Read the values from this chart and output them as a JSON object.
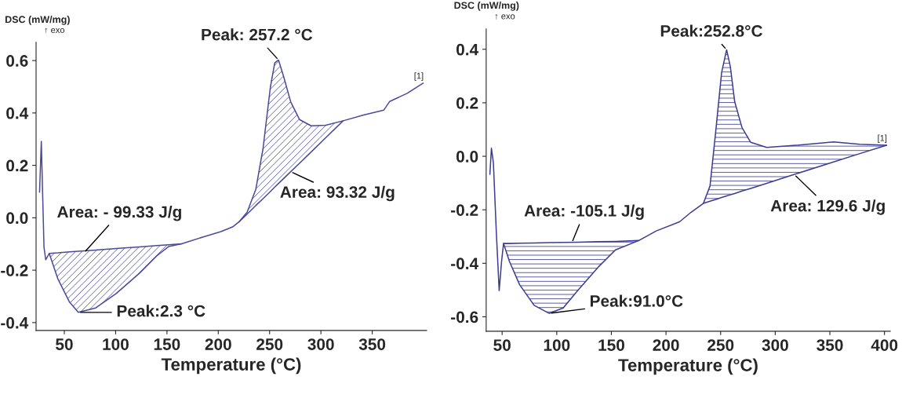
{
  "chart_data": [
    {
      "type": "line",
      "ylabel": "DSC (mW/mg)",
      "xlabel": "Temperature (°C)",
      "xlim": [
        22.5,
        403
      ],
      "ylim": [
        -0.43,
        0.67
      ],
      "xticks": [
        50,
        100,
        150,
        200,
        250,
        300,
        350
      ],
      "yticks": [
        -0.4,
        -0.2,
        {
          "value": 0,
          "label": "0.0"
        },
        0.2,
        0.4,
        0.6
      ],
      "grid": false,
      "legend": false,
      "series": [
        {
          "color": "#4a4a9c",
          "x": [
            25.9,
            27.6,
            30.2,
            31.9,
            35.3,
            43.8,
            55.1,
            63.6,
            80.6,
            100.5,
            123.1,
            140.2,
            151.5,
            164.3,
            185.5,
            202.5,
            213.9,
            220.1,
            228.1,
            236.6,
            243.6,
            250.7,
            255,
            258.7,
            263.5,
            270.6,
            279.1,
            290.4,
            304.6,
            321.6,
            341.5,
            361.3,
            367,
            384,
            399.6
          ],
          "values": [
            0.098,
            0.292,
            -0.112,
            -0.16,
            -0.136,
            -0.234,
            -0.322,
            -0.361,
            -0.344,
            -0.289,
            -0.212,
            -0.145,
            -0.11,
            -0.099,
            -0.073,
            -0.053,
            -0.035,
            -0.016,
            0.021,
            0.109,
            0.264,
            0.497,
            0.591,
            0.602,
            0.541,
            0.442,
            0.375,
            0.351,
            0.353,
            0.37,
            0.392,
            0.411,
            0.444,
            0.475,
            0.514
          ]
        },
        {
          "color": "#4a4a9c",
          "x": [
            35.3,
            43.8,
            55.1,
            63.6,
            80.6,
            100.5,
            123.1,
            140.2,
            151.5,
            164.3
          ],
          "values": [
            -0.136,
            -0.134,
            -0.13,
            -0.128,
            -0.123,
            -0.117,
            -0.111,
            -0.106,
            -0.103,
            -0.099
          ],
          "lower": [
            -0.136,
            -0.234,
            -0.322,
            -0.361,
            -0.344,
            -0.289,
            -0.212,
            -0.145,
            -0.11,
            -0.099
          ],
          "upper": [
            -0.136,
            -0.134,
            -0.13,
            -0.128,
            -0.123,
            -0.117,
            -0.111,
            -0.106,
            -0.103,
            -0.099
          ]
        },
        {
          "color": "#4a4a9c",
          "x": [
            220.1,
            228.1,
            236.6,
            243.6,
            250.7,
            255,
            258.7,
            263.5,
            270.6,
            279.1,
            290.4,
            304.6,
            321.6
          ],
          "values": [
            -0.016,
            0.014,
            0.047,
            0.073,
            0.1,
            0.117,
            0.131,
            0.149,
            0.176,
            0.208,
            0.251,
            0.305,
            0.37
          ],
          "lower": [
            -0.016,
            0.014,
            0.047,
            0.073,
            0.1,
            0.117,
            0.131,
            0.149,
            0.176,
            0.208,
            0.251,
            0.305,
            0.37
          ],
          "upper": [
            -0.016,
            0.021,
            0.109,
            0.264,
            0.497,
            0.591,
            0.602,
            0.541,
            0.442,
            0.375,
            0.351,
            0.353,
            0.37
          ]
        }
      ],
      "annotations": [
        "↑ exo",
        {
          "text": "Peak: 257.2 °C",
          "x": 258.7,
          "y": 0.602
        },
        {
          "text": "Area: 93.32 J/g",
          "x": 270.6,
          "y": 0.176
        },
        {
          "text": "Area: - 99.33 J/g",
          "x": 69.3,
          "y": -0.133
        },
        {
          "text": "Peak:2.3 °C",
          "x": 63.6,
          "y": -0.361
        },
        {
          "text": "[1]",
          "x": 399.6,
          "y": 0.514
        }
      ]
    },
    {
      "type": "line",
      "ylabel": "DSC (mW/mg)",
      "xlabel": "Temperature (°C)",
      "xlim": [
        35.4,
        405.3
      ],
      "ylim": [
        -0.654,
        0.476
      ],
      "xticks": [
        50,
        100,
        150,
        200,
        250,
        300,
        350,
        400
      ],
      "yticks": [
        -0.6,
        -0.4,
        -0.2,
        {
          "value": 0,
          "label": "0.0"
        },
        0.2,
        0.4
      ],
      "grid": false,
      "legend": false,
      "series": [
        {
          "color": "#3c3c96",
          "x": [
            38.8,
            40.2,
            42,
            44.7,
            47.3,
            49.5,
            51.3,
            56.7,
            66,
            79.3,
            93.1,
            105.9,
            119.2,
            137.8,
            153.8,
            175.1,
            191.1,
            212.4,
            223,
            234.2,
            240.3,
            245.6,
            250.9,
            255.5,
            258.9,
            262.9,
            269.6,
            277.6,
            292.2,
            318.8,
            353.4,
            377.4,
            401.9
          ],
          "values": [
            -0.067,
            0.03,
            -0.024,
            -0.285,
            -0.502,
            -0.393,
            -0.326,
            -0.393,
            -0.48,
            -0.557,
            -0.587,
            -0.567,
            -0.502,
            -0.415,
            -0.35,
            -0.315,
            -0.279,
            -0.245,
            -0.209,
            -0.176,
            -0.111,
            0.096,
            0.313,
            0.398,
            0.335,
            0.204,
            0.107,
            0.052,
            0.033,
            0.041,
            0.054,
            0.045,
            0.041
          ]
        },
        {
          "color": "#3c3c96",
          "x": [
            51.3,
            56.7,
            66,
            79.3,
            93.1,
            105.9,
            119.2,
            137.8,
            153.8,
            175.1
          ],
          "values": [
            -0.326,
            -0.326,
            -0.325,
            -0.324,
            -0.323,
            -0.322,
            -0.321,
            -0.319,
            -0.318,
            -0.315
          ],
          "lower": [
            -0.326,
            -0.393,
            -0.48,
            -0.557,
            -0.587,
            -0.567,
            -0.502,
            -0.415,
            -0.35,
            -0.315
          ],
          "upper": [
            -0.326,
            -0.326,
            -0.325,
            -0.324,
            -0.323,
            -0.322,
            -0.321,
            -0.319,
            -0.318,
            -0.315
          ]
        },
        {
          "color": "#3c3c96",
          "x": [
            234.2,
            240.3,
            245.6,
            250.9,
            255.5,
            258.9,
            262.9,
            269.6,
            277.6,
            292.2,
            318.8,
            353.4,
            377.4,
            401.9
          ],
          "values": [
            -0.176,
            -0.168,
            -0.161,
            -0.154,
            -0.148,
            -0.144,
            -0.139,
            -0.13,
            -0.12,
            -0.101,
            -0.066,
            -0.021,
            0.01,
            0.041
          ],
          "lower": [
            -0.176,
            -0.168,
            -0.161,
            -0.154,
            -0.148,
            -0.144,
            -0.139,
            -0.13,
            -0.12,
            -0.101,
            -0.066,
            -0.021,
            0.01,
            0.041
          ],
          "upper": [
            -0.176,
            -0.111,
            0.096,
            0.313,
            0.398,
            0.335,
            0.204,
            0.107,
            0.052,
            0.033,
            0.041,
            0.054,
            0.045,
            0.041
          ]
        }
      ],
      "annotations": [
        "↑ exo",
        {
          "text": "Peak:252.8°C",
          "x": 255.5,
          "y": 0.398
        },
        {
          "text": "Area: -105.1 J/g",
          "x": 113.9,
          "y": -0.323
        },
        {
          "text": "Peak:91.0°C",
          "x": 93.1,
          "y": -0.587
        },
        {
          "text": "Area: 129.6 J/g",
          "x": 317.5,
          "y": -0.068
        },
        {
          "text": "[1]",
          "x": 401.9,
          "y": 0.041
        }
      ]
    }
  ]
}
